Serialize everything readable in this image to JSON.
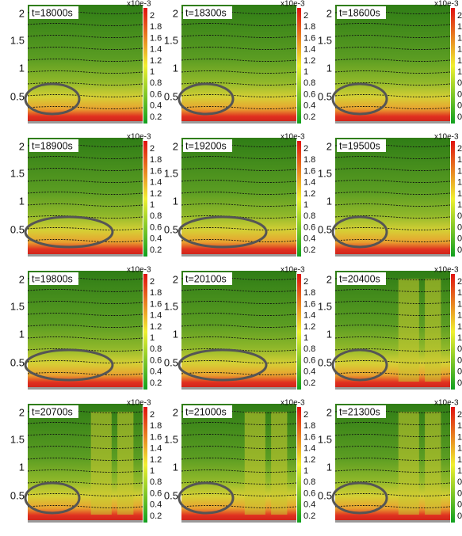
{
  "panels": [
    {
      "time": "t=18000s"
    },
    {
      "time": "t=18300s"
    },
    {
      "time": "t=18600s"
    },
    {
      "time": "t=18900s"
    },
    {
      "time": "t=19200s"
    },
    {
      "time": "t=19500s"
    },
    {
      "time": "t=19800s"
    },
    {
      "time": "t=20100s"
    },
    {
      "time": "t=20400s"
    },
    {
      "time": "t=20700s"
    },
    {
      "time": "t=21000s"
    },
    {
      "time": "t=21300s"
    }
  ],
  "y_axis_ticks": [
    "2",
    "1.5",
    "1",
    "0.5"
  ],
  "colorbar": {
    "unit": "x10e-3",
    "ticks": [
      "2",
      "1.8",
      "1.6",
      "1.4",
      "1.2",
      "1",
      "0.8",
      "0.6",
      "0.4",
      "0.2"
    ]
  }
}
